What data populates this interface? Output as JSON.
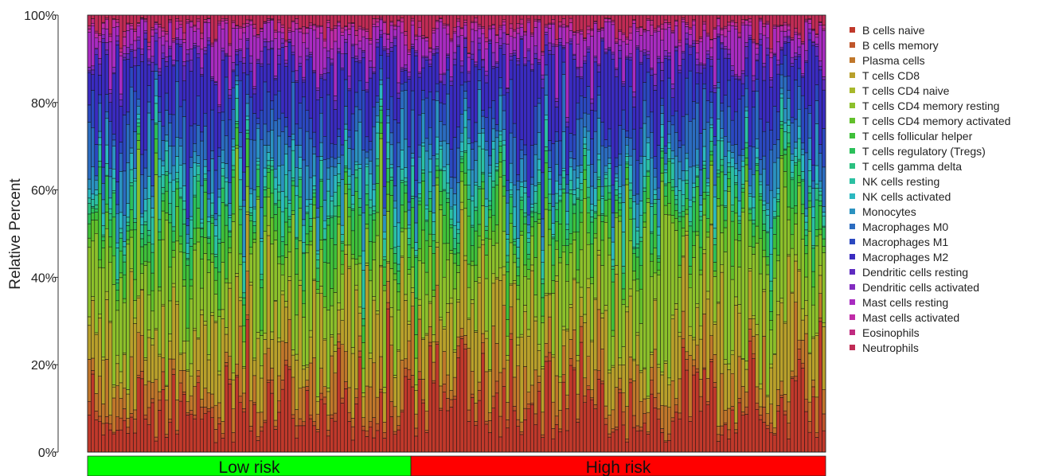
{
  "chart_data": {
    "type": "bar",
    "stacked": true,
    "normalized": true,
    "title": "",
    "xlabel": "",
    "ylabel": "Relative Percent",
    "ylim": [
      0,
      1
    ],
    "y_ticks": [
      "0%",
      "20%",
      "40%",
      "60%",
      "80%",
      "100%"
    ],
    "grid": false,
    "legend_position": "right",
    "n_samples": 210,
    "groups": [
      {
        "name": "Low risk",
        "n": 92,
        "color": "#00ff00"
      },
      {
        "name": "High risk",
        "n": 118,
        "color": "#ff0000"
      }
    ],
    "series": [
      {
        "name": "B cells naive",
        "color": "#c0392b",
        "mean": 0.1
      },
      {
        "name": "B cells memory",
        "color": "#c0562b",
        "mean": 0.015
      },
      {
        "name": "Plasma cells",
        "color": "#c0772b",
        "mean": 0.06
      },
      {
        "name": "T cells CD8",
        "color": "#b8a02b",
        "mean": 0.11
      },
      {
        "name": "T cells CD4 naive",
        "color": "#a8b82b",
        "mean": 0.01
      },
      {
        "name": "T cells CD4 memory resting",
        "color": "#8cc02b",
        "mean": 0.16
      },
      {
        "name": "T cells CD4 memory activated",
        "color": "#62c02b",
        "mean": 0.03
      },
      {
        "name": "T cells follicular helper",
        "color": "#3fc03a",
        "mean": 0.05
      },
      {
        "name": "T cells regulatory (Tregs)",
        "color": "#2bc05a",
        "mean": 0.03
      },
      {
        "name": "T cells gamma delta",
        "color": "#2bc080",
        "mean": 0.01
      },
      {
        "name": "NK cells resting",
        "color": "#2bc0a2",
        "mean": 0.03
      },
      {
        "name": "NK cells activated",
        "color": "#2bb8c0",
        "mean": 0.02
      },
      {
        "name": "Monocytes",
        "color": "#2b92c0",
        "mean": 0.04
      },
      {
        "name": "Macrophages M0",
        "color": "#2b6cc0",
        "mean": 0.05
      },
      {
        "name": "Macrophages M1",
        "color": "#2b48c0",
        "mean": 0.05
      },
      {
        "name": "Macrophages M2",
        "color": "#3a2bc0",
        "mean": 0.11
      },
      {
        "name": "Dendritic cells resting",
        "color": "#5e2bc0",
        "mean": 0.01
      },
      {
        "name": "Dendritic cells activated",
        "color": "#822bc0",
        "mean": 0.01
      },
      {
        "name": "Mast cells resting",
        "color": "#a82bc0",
        "mean": 0.05
      },
      {
        "name": "Mast cells activated",
        "color": "#c02ba8",
        "mean": 0.01
      },
      {
        "name": "Eosinophils",
        "color": "#c02b80",
        "mean": 0.005
      },
      {
        "name": "Neutrophils",
        "color": "#c02b55",
        "mean": 0.025
      }
    ]
  }
}
